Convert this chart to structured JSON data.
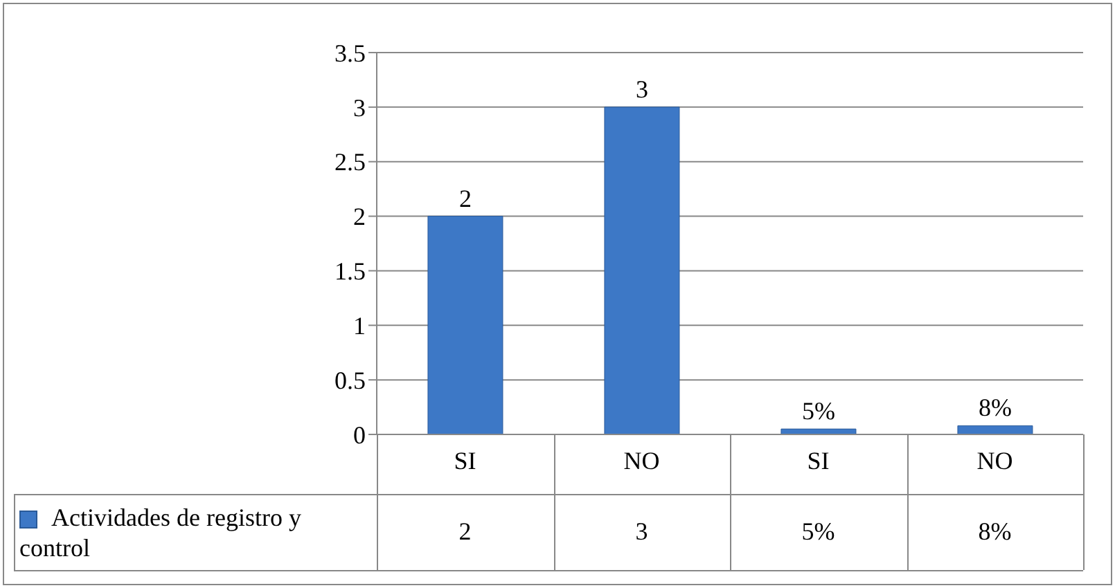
{
  "chart_data": {
    "type": "bar",
    "categories": [
      "SI",
      "NO",
      "SI",
      "NO"
    ],
    "series": [
      {
        "name": "Actividades de registro y control",
        "color": "#3d78c6",
        "values": [
          2,
          3,
          0.05,
          0.08
        ],
        "value_labels": [
          "2",
          "3",
          "5%",
          "8%"
        ]
      }
    ],
    "ylim": [
      0,
      3.5
    ],
    "yticks": [
      0,
      0.5,
      1,
      1.5,
      2,
      2.5,
      3,
      3.5
    ],
    "grid": "y",
    "legend": "bottom"
  }
}
